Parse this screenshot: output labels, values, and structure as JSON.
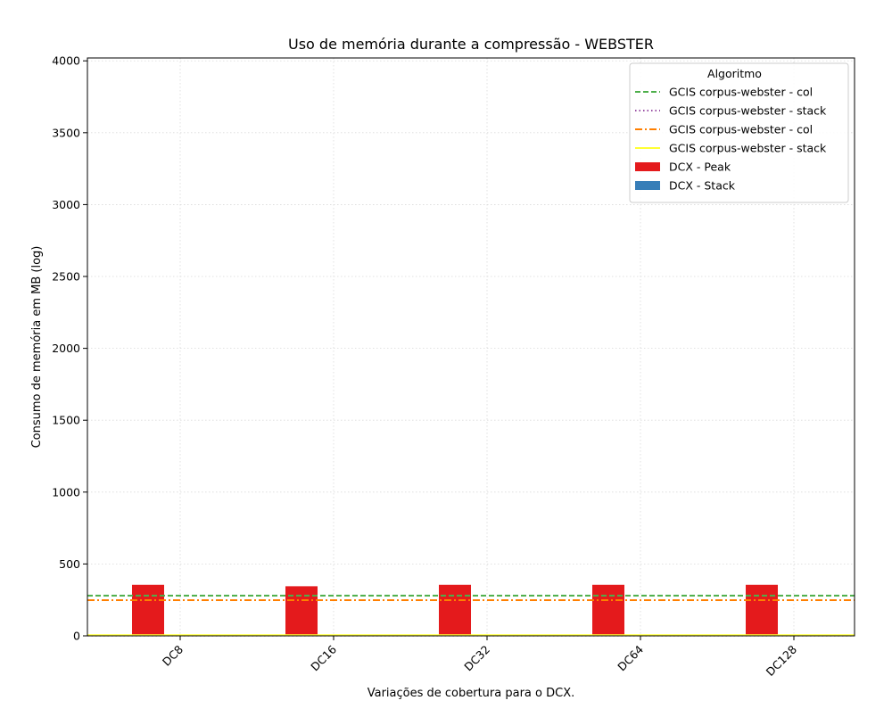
{
  "chart_data": {
    "type": "bar",
    "title": "Uso de memória durante a compressão -  WEBSTER",
    "xlabel": "Variações de cobertura para o DCX.",
    "ylabel": "Consumo de memória em MB (log)",
    "categories": [
      "DC8",
      "DC16",
      "DC32",
      "DC64",
      "DC128"
    ],
    "ylim": [
      0,
      4020
    ],
    "yticks": [
      0,
      500,
      1000,
      1500,
      2000,
      2500,
      3000,
      3500,
      4000
    ],
    "grid": true,
    "legend": {
      "title": "Algoritmo",
      "placement": "top-right"
    },
    "series": [
      {
        "name": "DCX - Peak",
        "kind": "bar",
        "color": "#e41a1c",
        "values": [
          355,
          345,
          355,
          355,
          355
        ]
      },
      {
        "name": "DCX - Stack",
        "kind": "bar",
        "color": "#377eb8",
        "values": [
          0,
          0,
          0,
          0,
          0
        ]
      }
    ],
    "reference_lines": [
      {
        "name": "GCIS corpus-webster - col",
        "value": 280,
        "color": "#4daf4a",
        "style": "dashed"
      },
      {
        "name": "GCIS corpus-webster - stack",
        "value": 2,
        "color": "#984ea3",
        "style": "dotted"
      },
      {
        "name": "GCIS corpus-webster - col",
        "value": 248,
        "color": "#ff7f00",
        "style": "dashdot"
      },
      {
        "name": "GCIS corpus-webster - stack",
        "value": 5,
        "color": "#ffff33",
        "style": "solid"
      }
    ],
    "legend_order": [
      "line:0",
      "line:1",
      "line:2",
      "line:3",
      "bar:0",
      "bar:1"
    ]
  }
}
